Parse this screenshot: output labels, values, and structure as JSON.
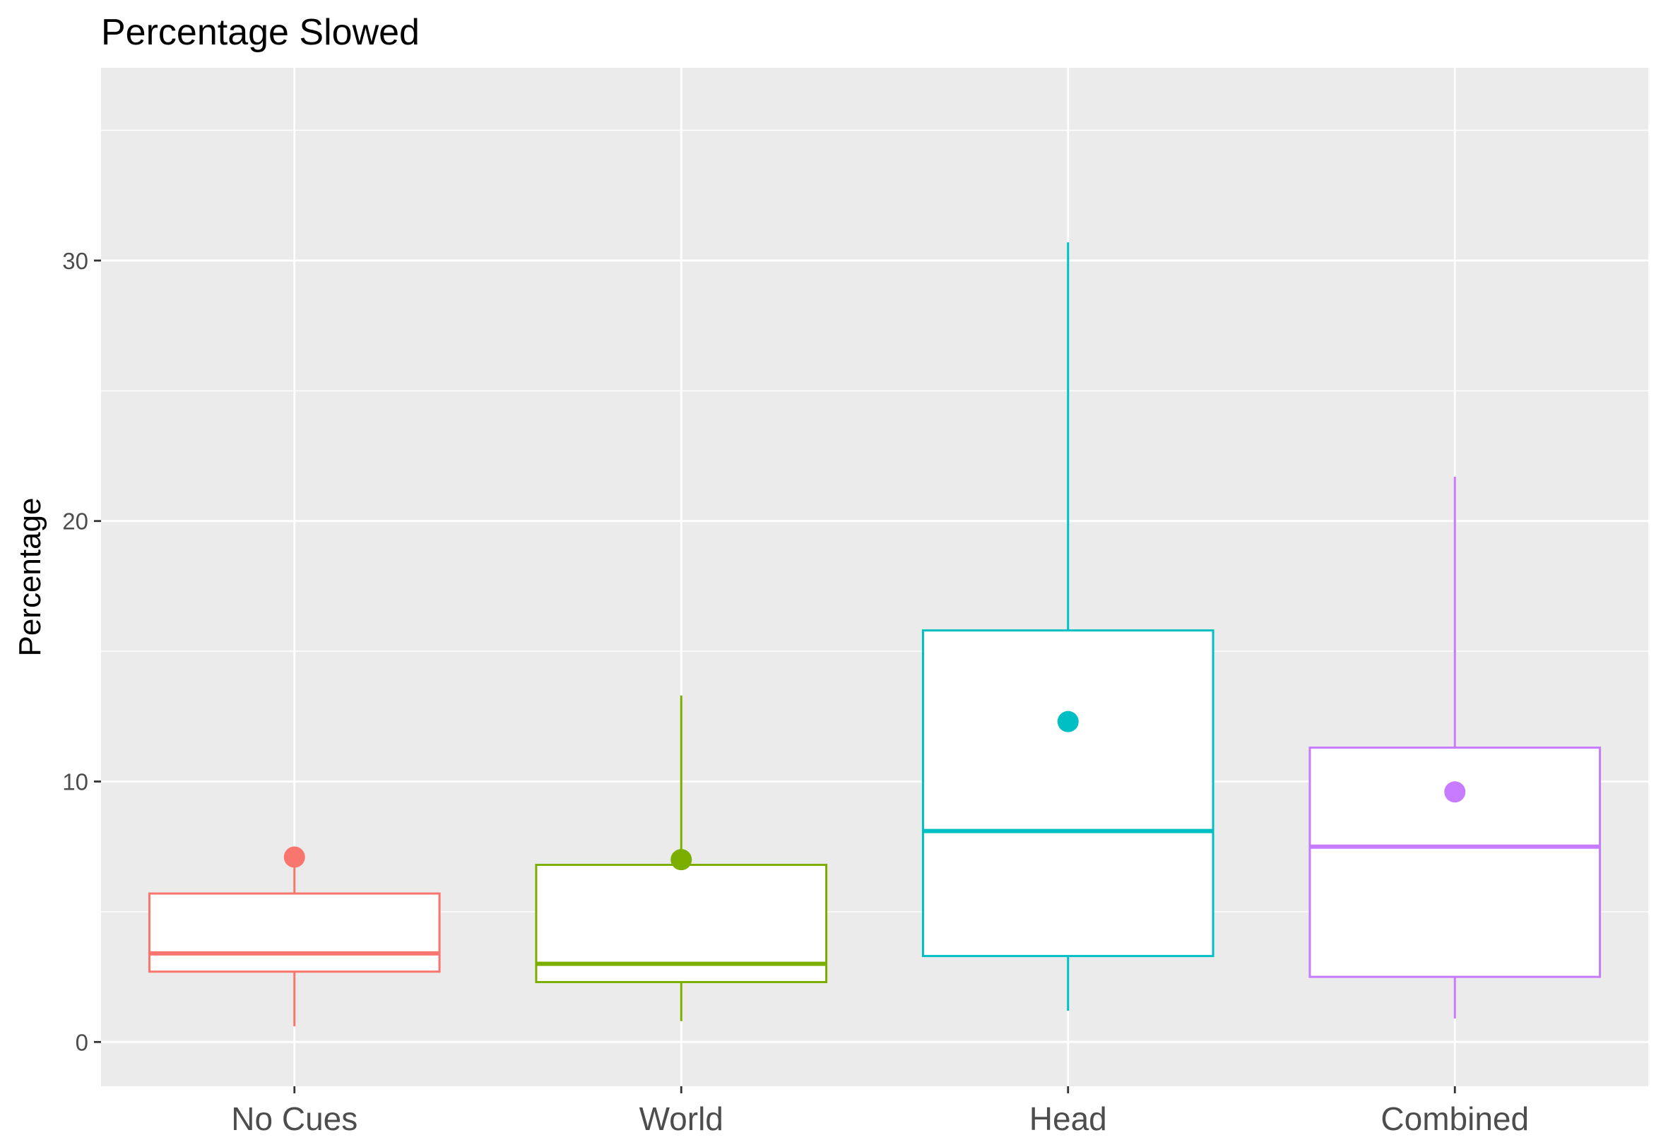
{
  "chart_data": {
    "type": "boxplot",
    "title": "Percentage Slowed",
    "xlabel": "",
    "ylabel": "Percentage",
    "ylim": [
      -1.7,
      37.4
    ],
    "y_ticks": [
      0,
      10,
      20,
      30
    ],
    "grid": true,
    "legend": "none",
    "categories": [
      "No Cues",
      "World",
      "Head",
      "Combined"
    ],
    "colors": [
      "#F8766D",
      "#7CAE00",
      "#00BFC4",
      "#C77CFF"
    ],
    "boxes": [
      {
        "category": "No Cues",
        "whisker_low": 0.6,
        "q1": 2.7,
        "median": 3.4,
        "q3": 5.7,
        "whisker_high": 6.7,
        "mean": 7.1
      },
      {
        "category": "World",
        "whisker_low": 0.8,
        "q1": 2.3,
        "median": 3.0,
        "q3": 6.8,
        "whisker_high": 13.3,
        "mean": 7.0
      },
      {
        "category": "Head",
        "whisker_low": 1.2,
        "q1": 3.3,
        "median": 8.1,
        "q3": 15.8,
        "whisker_high": 30.7,
        "mean": 12.3
      },
      {
        "category": "Combined",
        "whisker_low": 0.9,
        "q1": 2.5,
        "median": 7.5,
        "q3": 11.3,
        "whisker_high": 21.7,
        "mean": 9.6
      }
    ]
  }
}
